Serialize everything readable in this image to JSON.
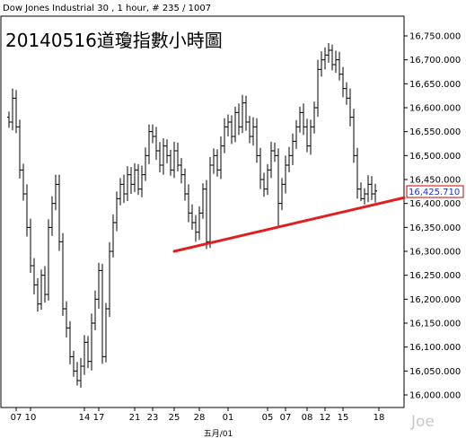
{
  "header": {
    "title": "Dow Jones Industrial 30 , 1 hour, # 235 / 1007",
    "overlay_title": "20140516道瓊指數小時圖"
  },
  "last_price": {
    "label": "16,425.710",
    "value": 16425.71,
    "color": "#cc0000"
  },
  "watermark": "Joe",
  "colors": {
    "bars": "#000000",
    "trendline": "#e02020",
    "axis": "#000000",
    "watermark": "#c8c8c8"
  },
  "chart_data": {
    "type": "ohlc",
    "title": "Dow Jones Industrial 30 , 1 hour, # 235 / 1007",
    "annotation": "20140516道瓊指數小時圖",
    "xlabel": "五月/01",
    "ylabel": "",
    "ylim": [
      15990,
      16775
    ],
    "y_ticks": [
      16000,
      16050,
      16100,
      16150,
      16200,
      16250,
      16300,
      16350,
      16400,
      16450,
      16500,
      16550,
      16600,
      16650,
      16700,
      16750
    ],
    "y_tick_labels": [
      "16,000.000",
      "16,050.000",
      "16,100.000",
      "16,150.000",
      "16,200.000",
      "16,250.000",
      "16,300.000",
      "16,350.000",
      "16,400.000",
      "16,450.000",
      "16,500.000",
      "16,550.000",
      "16,600.000",
      "16,650.000",
      "16,700.000",
      "16,750.000"
    ],
    "x_ticks": [
      {
        "label": "07",
        "bar": 2
      },
      {
        "label": "10",
        "bar": 6
      },
      {
        "label": "14",
        "bar": 21
      },
      {
        "label": "17",
        "bar": 25
      },
      {
        "label": "21",
        "bar": 35
      },
      {
        "label": "23",
        "bar": 40
      },
      {
        "label": "25",
        "bar": 46
      },
      {
        "label": "28",
        "bar": 53
      },
      {
        "label": "01",
        "bar": 61
      },
      {
        "label": "05",
        "bar": 72
      },
      {
        "label": "07",
        "bar": 77
      },
      {
        "label": "08",
        "bar": 83
      },
      {
        "label": "12",
        "bar": 88
      },
      {
        "label": "15",
        "bar": 93
      },
      {
        "label": "18",
        "bar": 103
      }
    ],
    "n_slots": 111,
    "close_path": [
      [
        0,
        16570
      ],
      [
        1,
        16620
      ],
      [
        2,
        16560
      ],
      [
        3,
        16470
      ],
      [
        4,
        16420
      ],
      [
        5,
        16350
      ],
      [
        6,
        16270
      ],
      [
        7,
        16230
      ],
      [
        8,
        16190
      ],
      [
        9,
        16250
      ],
      [
        10,
        16210
      ],
      [
        11,
        16350
      ],
      [
        12,
        16400
      ],
      [
        13,
        16440
      ],
      [
        14,
        16320
      ],
      [
        15,
        16180
      ],
      [
        16,
        16140
      ],
      [
        17,
        16080
      ],
      [
        18,
        16050
      ],
      [
        19,
        16030
      ],
      [
        20,
        16060
      ],
      [
        21,
        16110
      ],
      [
        22,
        16070
      ],
      [
        23,
        16150
      ],
      [
        24,
        16200
      ],
      [
        25,
        16260
      ],
      [
        26,
        16080
      ],
      [
        27,
        16180
      ],
      [
        28,
        16300
      ],
      [
        29,
        16360
      ],
      [
        30,
        16410
      ],
      [
        31,
        16440
      ],
      [
        32,
        16420
      ],
      [
        33,
        16460
      ],
      [
        34,
        16440
      ],
      [
        35,
        16470
      ],
      [
        36,
        16430
      ],
      [
        37,
        16460
      ],
      [
        38,
        16500
      ],
      [
        39,
        16550
      ],
      [
        40,
        16540
      ],
      [
        41,
        16510
      ],
      [
        42,
        16480
      ],
      [
        43,
        16520
      ],
      [
        44,
        16500
      ],
      [
        45,
        16470
      ],
      [
        46,
        16510
      ],
      [
        47,
        16480
      ],
      [
        48,
        16460
      ],
      [
        49,
        16420
      ],
      [
        50,
        16380
      ],
      [
        51,
        16360
      ],
      [
        52,
        16340
      ],
      [
        53,
        16380
      ],
      [
        54,
        16430
      ],
      [
        55,
        16320
      ],
      [
        56,
        16480
      ],
      [
        57,
        16500
      ],
      [
        58,
        16470
      ],
      [
        59,
        16520
      ],
      [
        60,
        16560
      ],
      [
        61,
        16570
      ],
      [
        62,
        16540
      ],
      [
        63,
        16590
      ],
      [
        64,
        16560
      ],
      [
        65,
        16610
      ],
      [
        66,
        16570
      ],
      [
        67,
        16540
      ],
      [
        68,
        16560
      ],
      [
        69,
        16500
      ],
      [
        70,
        16450
      ],
      [
        71,
        16430
      ],
      [
        72,
        16470
      ],
      [
        73,
        16510
      ],
      [
        74,
        16500
      ],
      [
        75,
        16400
      ],
      [
        76,
        16440
      ],
      [
        77,
        16480
      ],
      [
        78,
        16500
      ],
      [
        79,
        16530
      ],
      [
        80,
        16560
      ],
      [
        81,
        16590
      ],
      [
        82,
        16560
      ],
      [
        83,
        16520
      ],
      [
        84,
        16560
      ],
      [
        85,
        16600
      ],
      [
        86,
        16680
      ],
      [
        87,
        16700
      ],
      [
        88,
        16710
      ],
      [
        89,
        16720
      ],
      [
        90,
        16690
      ],
      [
        91,
        16700
      ],
      [
        92,
        16670
      ],
      [
        93,
        16640
      ],
      [
        94,
        16620
      ],
      [
        95,
        16580
      ],
      [
        96,
        16500
      ],
      [
        97,
        16430
      ],
      [
        98,
        16410
      ],
      [
        99,
        16420
      ],
      [
        100,
        16440
      ],
      [
        101,
        16420
      ],
      [
        102,
        16426
      ]
    ],
    "overrides": [
      {
        "i": 1,
        "high": 16640
      },
      {
        "i": 13,
        "high": 16460
      },
      {
        "i": 19,
        "low": 16020
      },
      {
        "i": 20,
        "low": 16015
      },
      {
        "i": 26,
        "low": 16065
      },
      {
        "i": 40,
        "high": 16565
      },
      {
        "i": 55,
        "low": 16305
      },
      {
        "i": 75,
        "low": 16350
      },
      {
        "i": 89,
        "high": 16735
      },
      {
        "i": 98,
        "low": 16405
      }
    ],
    "trendline": {
      "from": {
        "bar": 46,
        "value": 16300
      },
      "to": {
        "bar": 110,
        "value": 16412
      }
    }
  }
}
